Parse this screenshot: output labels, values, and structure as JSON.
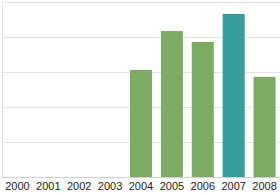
{
  "chart_data": {
    "type": "bar",
    "categories": [
      "2000",
      "2001",
      "2002",
      "2003",
      "2004",
      "2005",
      "2006",
      "2007",
      "2008"
    ],
    "values": [
      null,
      null,
      null,
      null,
      3.06,
      4.17,
      3.86,
      4.66,
      2.86
    ],
    "colors": [
      "#7eab62",
      "#7eab62",
      "#7eab62",
      "#7eab62",
      "#7eab62",
      "#7eab62",
      "#7eab62",
      "#359e9a",
      "#7eab62"
    ],
    "ylim": [
      0,
      5
    ],
    "yticks": [
      0,
      1,
      2,
      3,
      4,
      5
    ],
    "grid": true,
    "tick_labels": "x"
  }
}
